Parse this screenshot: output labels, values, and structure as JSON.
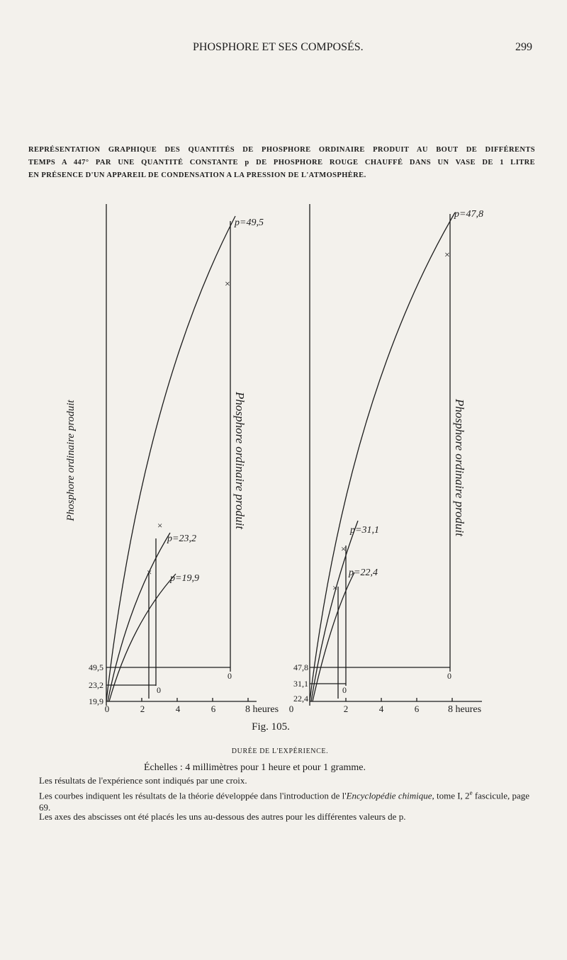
{
  "header": {
    "title": "PHOSPHORE ET SES COMPOSÉS.",
    "page": "299"
  },
  "caption": [
    "REPRÉSENTATION GRAPHIQUE DES QUANTITÉS DE PHOSPHORE ORDINAIRE PRODUIT AU BOUT DE DIFFÉRENTS",
    "TEMPS A 447° PAR UNE QUANTITÉ CONSTANTE p DE PHOSPHORE ROUGE CHAUFFÉ DANS UN VASE DE 1 LITRE",
    "EN PRÉSENCE D'UN APPAREIL DE CONDENSATION A LA PRESSION DE L'ATMOSPHÈRE."
  ],
  "figure": {
    "left": {
      "axis_label": "Phosphore ordinaire produit",
      "side_label": "Phosphore ordinaire produit",
      "curves": [
        "p=49,5",
        "p=23,2",
        "p=19,9"
      ],
      "y_labels": [
        "49,5",
        "23,2",
        "19,9"
      ],
      "x_labels": [
        "0",
        "2",
        "4",
        "6",
        "8 heures"
      ],
      "zero": "0"
    },
    "right": {
      "side_label": "Phosphore ordinaire produit",
      "curves": [
        "p=47,8",
        "p=31,1",
        "p=22,4"
      ],
      "y_labels": [
        "47,8",
        "31,1",
        "22,4"
      ],
      "x_labels": [
        "0",
        "2",
        "4",
        "6",
        "8 heures"
      ],
      "zero": "0"
    },
    "label": "Fig. 105.",
    "x_title": "DURÉE DE L'EXPÉRIENCE."
  },
  "notes": [
    "Échelles : 4 millimètres pour 1 heure et pour 1 gramme.",
    "Les résultats de l'expérience sont indiqués par une croix.",
    [
      "Les courbes indiquent les résultats de la théorie développée dans l'introduction de l'",
      "Encyclopédie chimique",
      ", tome I, 2",
      "e",
      " fascicule, page 69."
    ],
    "Les axes des abscisses ont été placés les uns au-dessous des autres pour les différentes valeurs de p."
  ]
}
